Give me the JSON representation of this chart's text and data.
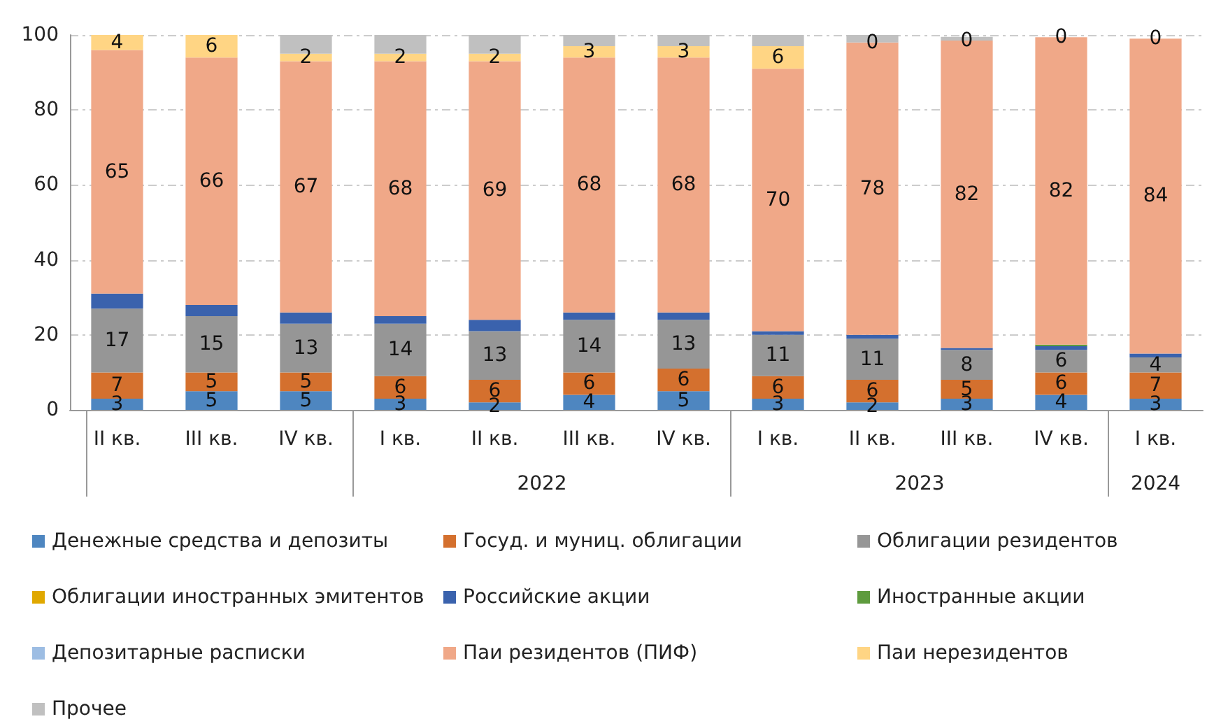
{
  "chart_data": {
    "type": "bar",
    "stacked": true,
    "categories": [
      "II кв.",
      "III кв.",
      "IV кв.",
      "I кв.",
      "II кв.",
      "III кв.",
      "IV кв.",
      "I кв.",
      "II кв.",
      "III кв.",
      "IV кв.",
      "I кв."
    ],
    "series": [
      {
        "name": "Денежные средства и депозиты",
        "color": "#4e86c0",
        "values": [
          3,
          5,
          5,
          3,
          2,
          4,
          5,
          3,
          2,
          3,
          4,
          3
        ],
        "value_labels": [
          "3",
          "5",
          "5",
          "3",
          "2",
          "4",
          "5",
          "3",
          "2",
          "3",
          "4",
          "3"
        ]
      },
      {
        "name": "Госуд. и муниц. облигации",
        "color": "#d4702e",
        "values": [
          7,
          5,
          5,
          6,
          6,
          6,
          6,
          6,
          6,
          5,
          6,
          7
        ],
        "value_labels": [
          "7",
          "5",
          "5",
          "6",
          "6",
          "6",
          "6",
          "6",
          "6",
          "5",
          "6",
          "7"
        ]
      },
      {
        "name": "Облигации резидентов",
        "color": "#969696",
        "values": [
          17,
          15,
          13,
          14,
          13,
          14,
          13,
          11,
          11,
          8,
          6,
          4
        ],
        "value_labels": [
          "17",
          "15",
          "13",
          "14",
          "13",
          "14",
          "13",
          "11",
          "11",
          "8",
          "6",
          "4"
        ]
      },
      {
        "name": "Облигации иностранных эмитентов",
        "color": "#e0a800",
        "values": [
          0,
          0,
          0,
          0,
          0,
          0,
          0,
          0,
          0,
          0,
          0,
          0
        ]
      },
      {
        "name": "Российские акции",
        "color": "#3a62ad",
        "values": [
          4,
          3,
          3,
          2,
          3,
          2,
          2,
          1,
          1,
          0.5,
          1,
          1
        ]
      },
      {
        "name": "Иностранные акции",
        "color": "#5e9b3e",
        "values": [
          0,
          0,
          0,
          0,
          0,
          0,
          0,
          0,
          0,
          0,
          0.4,
          0
        ]
      },
      {
        "name": "Депозитарные расписки",
        "color": "#9dbde3",
        "values": [
          0,
          0,
          0,
          0,
          0,
          0,
          0,
          0,
          0,
          0,
          0,
          0
        ]
      },
      {
        "name": "Паи резидентов (ПИФ)",
        "color": "#f0a888",
        "values": [
          65,
          66,
          67,
          68,
          69,
          68,
          68,
          70,
          78,
          82,
          82,
          84
        ],
        "value_labels": [
          "65",
          "66",
          "67",
          "68",
          "69",
          "68",
          "68",
          "70",
          "78",
          "82",
          "82",
          "84"
        ]
      },
      {
        "name": "Паи нерезидентов",
        "color": "#ffd584",
        "values": [
          4,
          6,
          2,
          2,
          2,
          3,
          3,
          6,
          0,
          0,
          0,
          0
        ],
        "value_labels": [
          "4",
          "6",
          "2",
          "2",
          "2",
          "3",
          "3",
          "6",
          "0",
          "0",
          "0",
          "0"
        ]
      },
      {
        "name": "Прочее",
        "color": "#c0c0c0",
        "values": [
          0,
          0,
          5,
          5,
          5,
          3,
          3,
          3,
          2,
          1,
          null,
          0
        ]
      }
    ],
    "annotations": [
      "2022",
      "2023",
      "2024"
    ],
    "ylim": [
      0,
      100
    ],
    "yticks": [
      0,
      20,
      40,
      60,
      80,
      100
    ],
    "grid": "y",
    "legend": "bottom"
  }
}
